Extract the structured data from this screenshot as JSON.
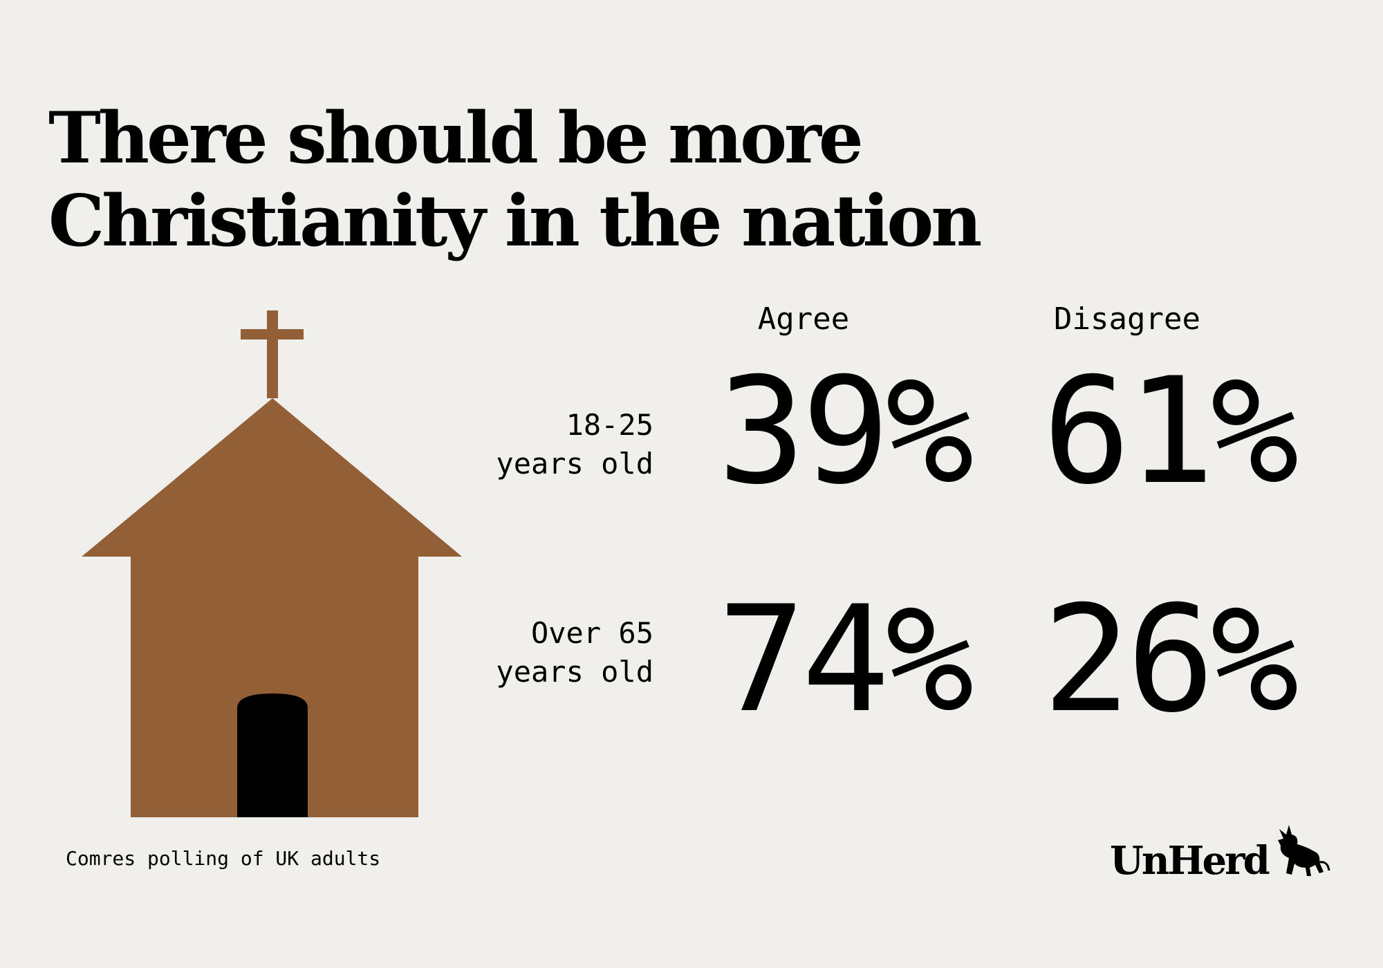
{
  "title": "There should be more Christianity in the nation",
  "source": "Comres polling of UK adults",
  "brand": "UnHerd",
  "colors": {
    "background": "#f1efeb",
    "church": "#935f36",
    "door": "#000000"
  },
  "chart_data": {
    "type": "table",
    "columns": [
      "Agree",
      "Disagree"
    ],
    "rows": [
      {
        "label_lines": [
          "18-25",
          "years old"
        ],
        "values": [
          "39%",
          "61%"
        ]
      },
      {
        "label_lines": [
          "Over 65",
          "years old"
        ],
        "values": [
          "74%",
          "26%"
        ]
      }
    ]
  }
}
